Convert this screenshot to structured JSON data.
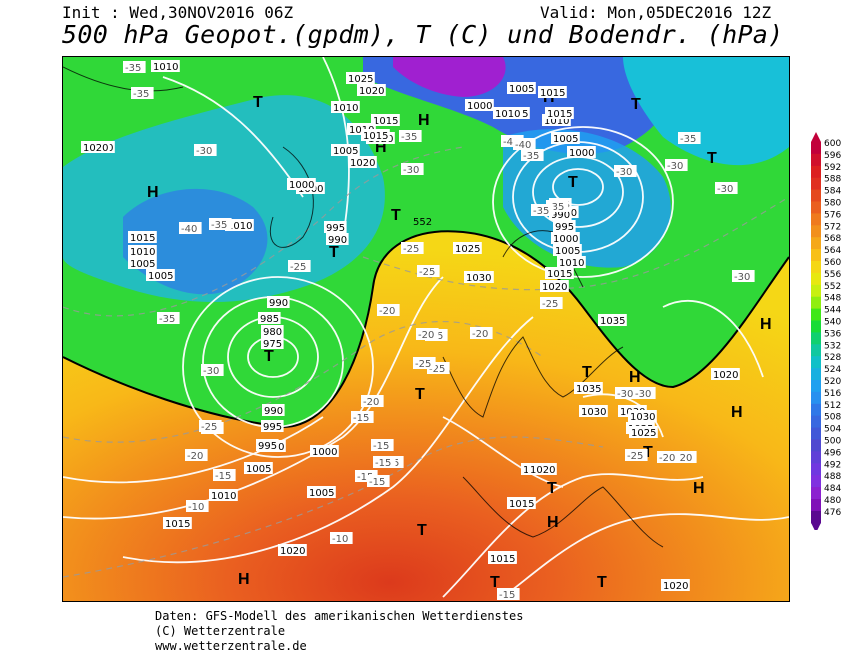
{
  "header": {
    "init": "Init : Wed,30NOV2016 06Z",
    "valid": "Valid: Mon,05DEC2016 12Z",
    "title": "500 hPa Geopot.(gpdm), T (C) und Bodendr. (hPa)"
  },
  "footer": {
    "line1": "Daten: GFS-Modell des amerikanischen Wetterdienstes",
    "line2": "(C) Wetterzentrale",
    "line3": "www.wetterzentrale.de"
  },
  "legend": {
    "levels": [
      "600",
      "596",
      "592",
      "588",
      "584",
      "580",
      "576",
      "572",
      "568",
      "564",
      "560",
      "556",
      "552",
      "548",
      "544",
      "540",
      "536",
      "532",
      "528",
      "524",
      "520",
      "516",
      "512",
      "508",
      "504",
      "500",
      "496",
      "492",
      "488",
      "484",
      "480",
      "476"
    ],
    "colors": [
      "#c2003a",
      "#d0102c",
      "#dc2020",
      "#e03020",
      "#e54a1e",
      "#ea6020",
      "#ef7a1e",
      "#f2901c",
      "#f5a81a",
      "#f8c018",
      "#f5d716",
      "#e8e810",
      "#c8f010",
      "#90ee10",
      "#40e818",
      "#18dc38",
      "#10d070",
      "#10c8a0",
      "#10c0c8",
      "#18b0e0",
      "#20a0f0",
      "#2890f0",
      "#3078e8",
      "#3868e0",
      "#4058d8",
      "#5048d0",
      "#6040d8",
      "#7038e0",
      "#8030e0",
      "#8c20d0",
      "#8010b8",
      "#5a0890"
    ]
  },
  "map": {
    "pressure_labels": [
      {
        "v": "1010"
      },
      {
        "v": "1025"
      },
      {
        "v": "1020"
      },
      {
        "v": "1010"
      },
      {
        "v": "1015"
      },
      {
        "v": "1010"
      },
      {
        "v": "1020"
      },
      {
        "v": "1005"
      },
      {
        "v": "1000"
      },
      {
        "v": "1000"
      },
      {
        "v": "1005"
      },
      {
        "v": "1005"
      },
      {
        "v": "1015"
      },
      {
        "v": "1010"
      },
      {
        "v": "1010"
      },
      {
        "v": "1005"
      },
      {
        "v": "1000"
      },
      {
        "v": "990"
      },
      {
        "v": "985"
      },
      {
        "v": "990"
      },
      {
        "v": "995"
      },
      {
        "v": "1000"
      },
      {
        "v": "1005"
      },
      {
        "v": "1010"
      },
      {
        "v": "1015"
      },
      {
        "v": "1020"
      },
      {
        "v": "1030"
      },
      {
        "v": "1035"
      },
      {
        "v": "1030"
      },
      {
        "v": "1025"
      },
      {
        "v": "1020"
      },
      {
        "v": "1020"
      },
      {
        "v": "1015"
      },
      {
        "v": "1015"
      },
      {
        "v": "1010"
      },
      {
        "v": "1005"
      },
      {
        "v": "1000"
      },
      {
        "v": "995"
      },
      {
        "v": "990"
      },
      {
        "v": "985"
      },
      {
        "v": "980"
      },
      {
        "v": "975"
      },
      {
        "v": "990"
      },
      {
        "v": "995"
      },
      {
        "v": "1000"
      },
      {
        "v": "1005"
      },
      {
        "v": "1010"
      },
      {
        "v": "1015"
      },
      {
        "v": "1020"
      },
      {
        "v": "1020"
      },
      {
        "v": "1015"
      },
      {
        "v": "1010"
      },
      {
        "v": "1005"
      },
      {
        "v": "1015"
      },
      {
        "v": "1020"
      },
      {
        "v": "1025"
      },
      {
        "v": "1030"
      },
      {
        "v": "1035"
      },
      {
        "v": "1030"
      },
      {
        "v": "1030"
      },
      {
        "v": "1025"
      },
      {
        "v": "1020"
      },
      {
        "v": "1015"
      },
      {
        "v": "1020"
      },
      {
        "v": "1020"
      },
      {
        "v": "1015"
      },
      {
        "v": "1005"
      },
      {
        "v": "1000"
      },
      {
        "v": "990"
      },
      {
        "v": "995"
      }
    ],
    "temp_labels": [
      {
        "v": "-35"
      },
      {
        "v": "-30"
      },
      {
        "v": "-35"
      },
      {
        "v": "-40"
      },
      {
        "v": "-35"
      },
      {
        "v": "-35"
      },
      {
        "v": "-40"
      },
      {
        "v": "-35"
      },
      {
        "v": "-30"
      },
      {
        "v": "-35"
      },
      {
        "v": "-30"
      },
      {
        "v": "-30"
      },
      {
        "v": "-25"
      },
      {
        "v": "-35"
      },
      {
        "v": "-35"
      },
      {
        "v": "-40"
      },
      {
        "v": "-35"
      },
      {
        "v": "-30"
      },
      {
        "v": "-25"
      },
      {
        "v": "-25"
      },
      {
        "v": "-25"
      },
      {
        "v": "-20"
      },
      {
        "v": "-20"
      },
      {
        "v": "-20"
      },
      {
        "v": "-25"
      },
      {
        "v": "-25"
      },
      {
        "v": "-30"
      },
      {
        "v": "-25"
      },
      {
        "v": "-25"
      },
      {
        "v": "-20"
      },
      {
        "v": "-20"
      },
      {
        "v": "-15"
      },
      {
        "v": "-15"
      },
      {
        "v": "-15"
      },
      {
        "v": "-15"
      },
      {
        "v": "-15"
      },
      {
        "v": "-10"
      },
      {
        "v": "-15"
      },
      {
        "v": "-10"
      },
      {
        "v": "-15"
      },
      {
        "v": "-30"
      },
      {
        "v": "-30"
      },
      {
        "v": "-30"
      },
      {
        "v": "-25"
      },
      {
        "v": "-20"
      },
      {
        "v": "-25"
      },
      {
        "v": "-15"
      },
      {
        "v": "-20"
      }
    ],
    "geopot_label": "552",
    "high_symbol": "H",
    "low_symbol": "T"
  }
}
